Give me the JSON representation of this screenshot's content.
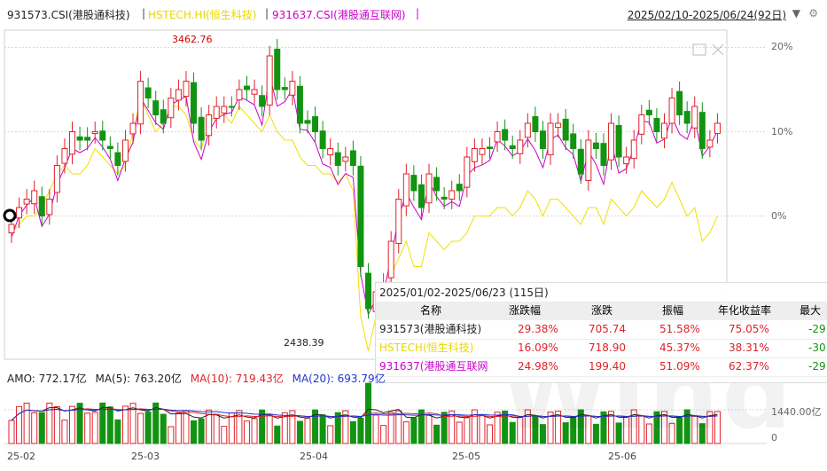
{
  "header": {
    "series_labels": [
      {
        "text": "931573.CSI(港股通科技)",
        "color": "#222222"
      },
      {
        "text": "HSTECH.HI(恒生科技)",
        "color": "#e8d800"
      },
      {
        "text": "931637.CSI(港股通互联网)",
        "color": "#cc00cc"
      }
    ],
    "separator": "|",
    "date_range": "2025/02/10-2025/06/24(92日)",
    "dropdown_icon": "caret-down-icon",
    "settings_icon": "gear-icon"
  },
  "axis": {
    "y_ticks": [
      "20%",
      "10%",
      "0%"
    ],
    "x_ticks": [
      "25-02",
      "25-03",
      "25-04",
      "25-05",
      "25-06"
    ],
    "volume_tick": "1440.00亿",
    "volume_zero": "0"
  },
  "annotations": {
    "high": "3462.76",
    "low": "2438.39"
  },
  "colors": {
    "up": "#e0222b",
    "down": "#129412",
    "hstech": "#f0e000",
    "internet": "#cc00cc",
    "grid": "#d8d8d8"
  },
  "table": {
    "range": "2025/01/02-2025/06/23 (115日)",
    "headers": [
      "名称",
      "涨跌幅",
      "涨跌",
      "振幅",
      "年化收益率",
      "最大"
    ],
    "rows": [
      {
        "name": "931573(港股通科技)",
        "color": "#222222",
        "pct": "29.38%",
        "chg": "705.74",
        "amp": "51.58%",
        "ann": "75.05%",
        "max": "-29"
      },
      {
        "name": "HSTECH(恒生科技)",
        "color": "#e8d800",
        "pct": "16.09%",
        "chg": "718.90",
        "amp": "45.37%",
        "ann": "38.31%",
        "max": "-30"
      },
      {
        "name": "931637(港股通互联网",
        "color": "#cc00cc",
        "pct": "24.98%",
        "chg": "199.40",
        "amp": "51.09%",
        "ann": "62.37%",
        "max": "-29"
      }
    ]
  },
  "volume": {
    "amo": "AMO: 772.17亿",
    "ma5": "MA(5): 763.20亿",
    "ma10": "MA(10): 719.43亿",
    "ma20": "MA(20): 693.79亿",
    "colors": {
      "amo": "#222222",
      "ma5": "#222222",
      "ma10": "#e0222b",
      "ma20": "#2233cc"
    }
  },
  "watermark": "Wind",
  "chart_data": {
    "type": "candlestick",
    "ylabel_format": "percent change",
    "ylim": [
      -17,
      21
    ],
    "series": [
      {
        "name": "931573.CSI(港股通科技)",
        "values": [
          -1,
          1,
          2,
          3,
          0,
          2,
          6,
          8,
          10,
          9,
          9,
          10,
          9,
          8,
          6,
          9,
          11,
          16,
          14,
          12,
          11,
          14,
          15,
          16,
          11,
          9,
          12,
          13,
          13,
          13,
          15,
          15,
          15,
          13,
          19,
          15,
          15,
          16,
          11,
          11,
          10,
          8,
          8,
          6,
          7,
          6,
          -6,
          -11,
          -9,
          -8,
          -3,
          2,
          5,
          3,
          1,
          5,
          3,
          2,
          3,
          3,
          7,
          8,
          8,
          8,
          10,
          9,
          8,
          9,
          11,
          10,
          8,
          11,
          11,
          9,
          8,
          5,
          9,
          8,
          6,
          11,
          7,
          7,
          9,
          12,
          12,
          10,
          11,
          14,
          12,
          11,
          13,
          8,
          9,
          11
        ]
      },
      {
        "name": "HSTECH.HI(恒生科技)",
        "values": [
          -2,
          -1,
          0,
          0,
          1,
          3,
          5,
          6,
          5,
          5,
          6,
          8,
          7,
          6,
          5,
          6,
          10,
          14,
          12,
          10,
          11,
          13,
          13,
          12,
          9,
          8,
          11,
          12,
          12,
          11,
          13,
          12,
          11,
          10,
          12,
          10,
          9,
          9,
          7,
          6,
          6,
          5,
          5,
          4,
          5,
          3,
          -12,
          -16,
          -12,
          -10,
          -7,
          -5,
          -3,
          -6,
          -6,
          -2,
          -3,
          -4,
          -3,
          -3,
          -2,
          0,
          0,
          0,
          1,
          1,
          0,
          1,
          3,
          2,
          0,
          2,
          2,
          1,
          0,
          -1,
          1,
          1,
          -1,
          2,
          1,
          0,
          1,
          3,
          2,
          1,
          2,
          4,
          2,
          0,
          1,
          -3,
          -2,
          0
        ]
      }
    ],
    "annotations": {
      "high": 3462.76,
      "low": 2438.39
    },
    "volume_max": 1440.0
  }
}
